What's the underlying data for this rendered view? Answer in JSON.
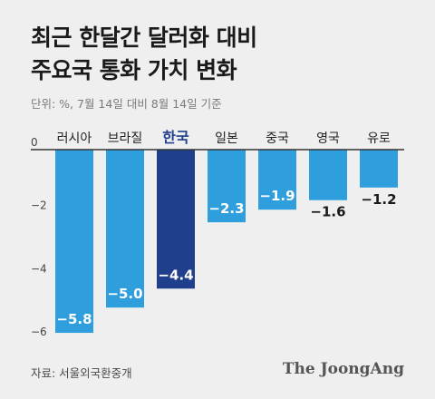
{
  "header": {
    "title_lines": [
      "최근 한달간 달러화 대비",
      "주요국 통화 가치 변화"
    ],
    "unit_note": "단위: %, 7월 14일 대비 8월 14일 기준"
  },
  "footer": {
    "source": "자료: 서울외국환중개",
    "brand": "The JoongAng"
  },
  "colors": {
    "bar": "#2e9fdc",
    "highlight": "#1f3f8c",
    "axis": "#333333",
    "tick_label": "#444444"
  },
  "chart_data": {
    "type": "bar",
    "title": "최근 한달간 달러화 대비 주요국 통화 가치 변화",
    "categories": [
      "러시아",
      "브라질",
      "한국",
      "일본",
      "중국",
      "영국",
      "유로"
    ],
    "values": [
      -5.8,
      -5.0,
      -4.4,
      -2.3,
      -1.9,
      -1.6,
      -1.2
    ],
    "value_labels": [
      "−5.8",
      "−5.0",
      "−4.4",
      "−2.3",
      "−1.9",
      "−1.6",
      "−1.2"
    ],
    "highlight_category": "한국",
    "yticks": [
      0,
      -2,
      -4,
      -6
    ],
    "ytick_labels": [
      "0",
      "−2",
      "−4",
      "−6"
    ],
    "ylim": [
      -6,
      0
    ],
    "xlabel": "",
    "ylabel": "",
    "grid": false,
    "legend": "none"
  }
}
